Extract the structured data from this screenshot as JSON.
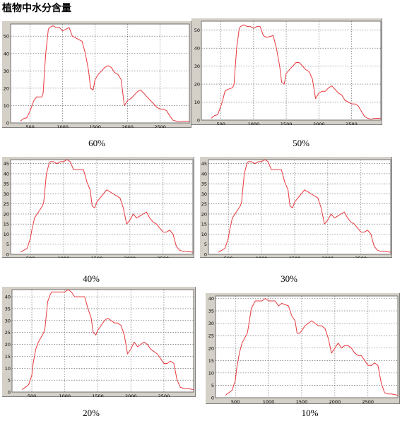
{
  "page_title": "植物中水分含量",
  "chart_data": [
    {
      "type": "line",
      "caption": "60%",
      "ylim": [
        0,
        57
      ],
      "xlim": [
        200,
        2950
      ],
      "yticks": [
        0,
        10,
        20,
        30,
        40,
        50
      ],
      "xticks": [
        500,
        1000,
        1500,
        2000,
        2500
      ],
      "grid": true,
      "line_color": "#e8383d",
      "series": [
        {
          "x": [
            350,
            400,
            450,
            500,
            520,
            560,
            600,
            680,
            700,
            740,
            780,
            800,
            850,
            900,
            950,
            1000,
            1050,
            1100,
            1150,
            1200,
            1300,
            1350,
            1400,
            1430,
            1470,
            1500,
            1550,
            1600,
            1650,
            1700,
            1750,
            1800,
            1850,
            1900,
            1950,
            2000,
            2050,
            2100,
            2150,
            2200,
            2250,
            2300,
            2350,
            2400,
            2450,
            2500,
            2550,
            2600,
            2650,
            2700,
            2750,
            2800,
            2850,
            2950
          ],
          "y": [
            1,
            2.5,
            3,
            7,
            9,
            13,
            15,
            15,
            17,
            40,
            54,
            55,
            56,
            55,
            55,
            53,
            54,
            55,
            50,
            49,
            47,
            40,
            30,
            20,
            19,
            25,
            28,
            30,
            32,
            33,
            32,
            29,
            28,
            25,
            10,
            13,
            14,
            16,
            18,
            19,
            17,
            15,
            13,
            11,
            9,
            8,
            8,
            7,
            4,
            1.5,
            1,
            0.5,
            1,
            1
          ]
        }
      ]
    },
    {
      "type": "line",
      "caption": "50%",
      "ylim": [
        0,
        55
      ],
      "xlim": [
        200,
        2950
      ],
      "yticks": [
        0,
        10,
        20,
        30,
        40,
        50
      ],
      "xticks": [
        500,
        1000,
        1500,
        2000,
        2500
      ],
      "grid": true,
      "line_color": "#e8383d",
      "series": [
        {
          "x": [
            350,
            400,
            450,
            500,
            520,
            560,
            600,
            680,
            700,
            740,
            780,
            800,
            850,
            900,
            950,
            1000,
            1050,
            1100,
            1150,
            1200,
            1300,
            1350,
            1400,
            1430,
            1470,
            1500,
            1550,
            1600,
            1650,
            1700,
            1750,
            1800,
            1850,
            1900,
            1950,
            2000,
            2050,
            2100,
            2150,
            2200,
            2250,
            2300,
            2350,
            2400,
            2450,
            2500,
            2550,
            2600,
            2650,
            2700,
            2750,
            2800,
            2850,
            2950
          ],
          "y": [
            1,
            2.5,
            3,
            8,
            10,
            16,
            17,
            18,
            20,
            40,
            51,
            52,
            53,
            52,
            52,
            51,
            52,
            52,
            47,
            46,
            47,
            40,
            30,
            21,
            20,
            26,
            28,
            30,
            32,
            32,
            30,
            28,
            27,
            23,
            12,
            15,
            16,
            16,
            18,
            19,
            17,
            15,
            14,
            11,
            10,
            9,
            9,
            8,
            5,
            2,
            1,
            0.5,
            1,
            1
          ]
        }
      ]
    },
    {
      "type": "line",
      "caption": "40%",
      "ylim": [
        0,
        47
      ],
      "xlim": [
        200,
        2950
      ],
      "yticks": [
        0,
        5,
        10,
        15,
        20,
        25,
        30,
        35,
        40,
        45
      ],
      "xticks": [
        500,
        1000,
        1500,
        2000,
        2500
      ],
      "grid": true,
      "line_color": "#e8383d",
      "series": [
        {
          "x": [
            350,
            400,
            450,
            500,
            520,
            560,
            600,
            680,
            700,
            740,
            780,
            800,
            850,
            900,
            950,
            1000,
            1050,
            1100,
            1150,
            1200,
            1300,
            1350,
            1400,
            1430,
            1470,
            1500,
            1550,
            1600,
            1650,
            1700,
            1750,
            1800,
            1850,
            1900,
            1950,
            2000,
            2050,
            2100,
            2150,
            2200,
            2250,
            2300,
            2350,
            2400,
            2450,
            2500,
            2550,
            2600,
            2650,
            2700,
            2750,
            2800,
            2850,
            2950
          ],
          "y": [
            1,
            2,
            3,
            8,
            12,
            18,
            20,
            24,
            26,
            40,
            45,
            46,
            46,
            45,
            46,
            46,
            47,
            46,
            42,
            42,
            42,
            36,
            32,
            24,
            23,
            26,
            28,
            30,
            32,
            31,
            30,
            29,
            28,
            23,
            15,
            17,
            20,
            18,
            19,
            20,
            21,
            18,
            16,
            15,
            13,
            11,
            11,
            12,
            10,
            4,
            2,
            1.5,
            1.5,
            1
          ]
        }
      ]
    },
    {
      "type": "line",
      "caption": "30%",
      "ylim": [
        0,
        47
      ],
      "xlim": [
        200,
        2950
      ],
      "yticks": [
        0,
        5,
        10,
        15,
        20,
        25,
        30,
        35,
        40,
        45
      ],
      "xticks": [
        500,
        1000,
        1500,
        2000,
        2500
      ],
      "grid": true,
      "line_color": "#e8383d",
      "series": [
        {
          "x": [
            350,
            400,
            450,
            500,
            520,
            560,
            600,
            680,
            700,
            740,
            780,
            800,
            850,
            900,
            950,
            1000,
            1050,
            1100,
            1150,
            1200,
            1300,
            1350,
            1400,
            1430,
            1470,
            1500,
            1550,
            1600,
            1650,
            1700,
            1750,
            1800,
            1850,
            1900,
            1950,
            2000,
            2050,
            2100,
            2150,
            2200,
            2250,
            2300,
            2350,
            2400,
            2450,
            2500,
            2550,
            2600,
            2650,
            2700,
            2750,
            2800,
            2850,
            2950
          ],
          "y": [
            1,
            2,
            3,
            8,
            12,
            18,
            20,
            24,
            26,
            40,
            45,
            46,
            46,
            45,
            46,
            46,
            47,
            46,
            42,
            42,
            42,
            36,
            32,
            24,
            23,
            26,
            28,
            30,
            32,
            31,
            30,
            29,
            28,
            23,
            15,
            17,
            20,
            18,
            19,
            20,
            21,
            18,
            16,
            15,
            13,
            11,
            11,
            12,
            10,
            4,
            2,
            1.5,
            1.5,
            1
          ]
        }
      ]
    },
    {
      "type": "line",
      "caption": "20%",
      "ylim": [
        0,
        43
      ],
      "xlim": [
        200,
        2950
      ],
      "yticks": [
        0,
        5,
        10,
        15,
        20,
        25,
        30,
        35,
        40
      ],
      "xticks": [
        500,
        1000,
        1500,
        2000,
        2500
      ],
      "grid": true,
      "line_color": "#e8383d",
      "series": [
        {
          "x": [
            350,
            400,
            450,
            500,
            520,
            560,
            600,
            680,
            700,
            740,
            780,
            800,
            850,
            900,
            950,
            1000,
            1050,
            1100,
            1150,
            1200,
            1300,
            1350,
            1400,
            1430,
            1470,
            1500,
            1550,
            1600,
            1650,
            1700,
            1750,
            1800,
            1850,
            1900,
            1950,
            2000,
            2050,
            2100,
            2150,
            2200,
            2250,
            2300,
            2350,
            2400,
            2450,
            2500,
            2550,
            2600,
            2650,
            2700,
            2750,
            2800,
            2850,
            2950
          ],
          "y": [
            1,
            2,
            3,
            7,
            12,
            18,
            21,
            25,
            27,
            38,
            41,
            42,
            42,
            42,
            42,
            42,
            43,
            42,
            40,
            40,
            40,
            35,
            31,
            25,
            24,
            26,
            28,
            30,
            31,
            30,
            29,
            29,
            28,
            24,
            16,
            18,
            21,
            19,
            20,
            21,
            20,
            18,
            17,
            16,
            14,
            12,
            12,
            13,
            12,
            5,
            2,
            1.5,
            1.5,
            1
          ]
        }
      ]
    },
    {
      "type": "line",
      "caption": "10%",
      "ylim": [
        0,
        41
      ],
      "xlim": [
        200,
        2950
      ],
      "yticks": [
        0,
        5,
        10,
        15,
        20,
        25,
        30,
        35,
        40
      ],
      "xticks": [
        500,
        1000,
        1500,
        2000,
        2500
      ],
      "grid": true,
      "line_color": "#e8383d",
      "series": [
        {
          "x": [
            350,
            400,
            450,
            500,
            520,
            560,
            600,
            680,
            700,
            740,
            780,
            800,
            850,
            900,
            950,
            1000,
            1050,
            1100,
            1150,
            1200,
            1300,
            1350,
            1400,
            1430,
            1470,
            1500,
            1550,
            1600,
            1650,
            1700,
            1750,
            1800,
            1850,
            1900,
            1950,
            2000,
            2050,
            2100,
            2150,
            2200,
            2250,
            2300,
            2350,
            2400,
            2450,
            2500,
            2550,
            2600,
            2650,
            2700,
            2750,
            2800,
            2850,
            2950
          ],
          "y": [
            1,
            2,
            3,
            7,
            12,
            18,
            22,
            26,
            29,
            36,
            38,
            39,
            39,
            39,
            40,
            39,
            39,
            39,
            37,
            38,
            37,
            33,
            31,
            26,
            26,
            27,
            29,
            30,
            31,
            30,
            29,
            29,
            28,
            24,
            18,
            20,
            22,
            20,
            21,
            21,
            20,
            18,
            17,
            17,
            15,
            13,
            13,
            14,
            13,
            6,
            2,
            1.5,
            1.5,
            1
          ]
        }
      ]
    }
  ]
}
